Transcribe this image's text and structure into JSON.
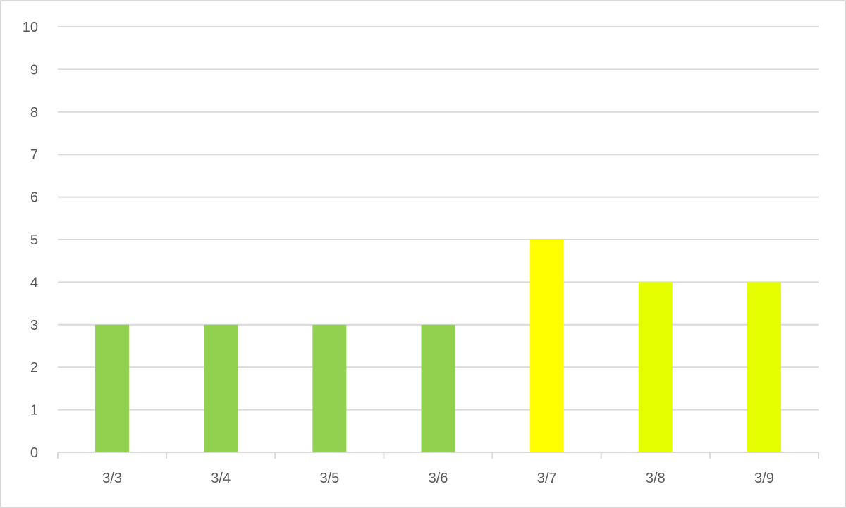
{
  "chart_data": {
    "type": "bar",
    "title": "",
    "xlabel": "",
    "ylabel": "",
    "categories": [
      "3/3",
      "3/4",
      "3/5",
      "3/6",
      "3/7",
      "3/8",
      "3/9"
    ],
    "values": [
      3,
      3,
      3,
      3,
      5,
      4,
      4
    ],
    "bar_colors": [
      "#92d050",
      "#92d050",
      "#92d050",
      "#92d050",
      "#ffff00",
      "#e5ff00",
      "#e5ff00"
    ],
    "ylim": [
      0,
      10
    ],
    "yticks": [
      "0",
      "1",
      "2",
      "3",
      "4",
      "5",
      "6",
      "7",
      "8",
      "9",
      "10"
    ],
    "grid": true,
    "legend": "none",
    "gridline_color": "#d9d9d9"
  }
}
